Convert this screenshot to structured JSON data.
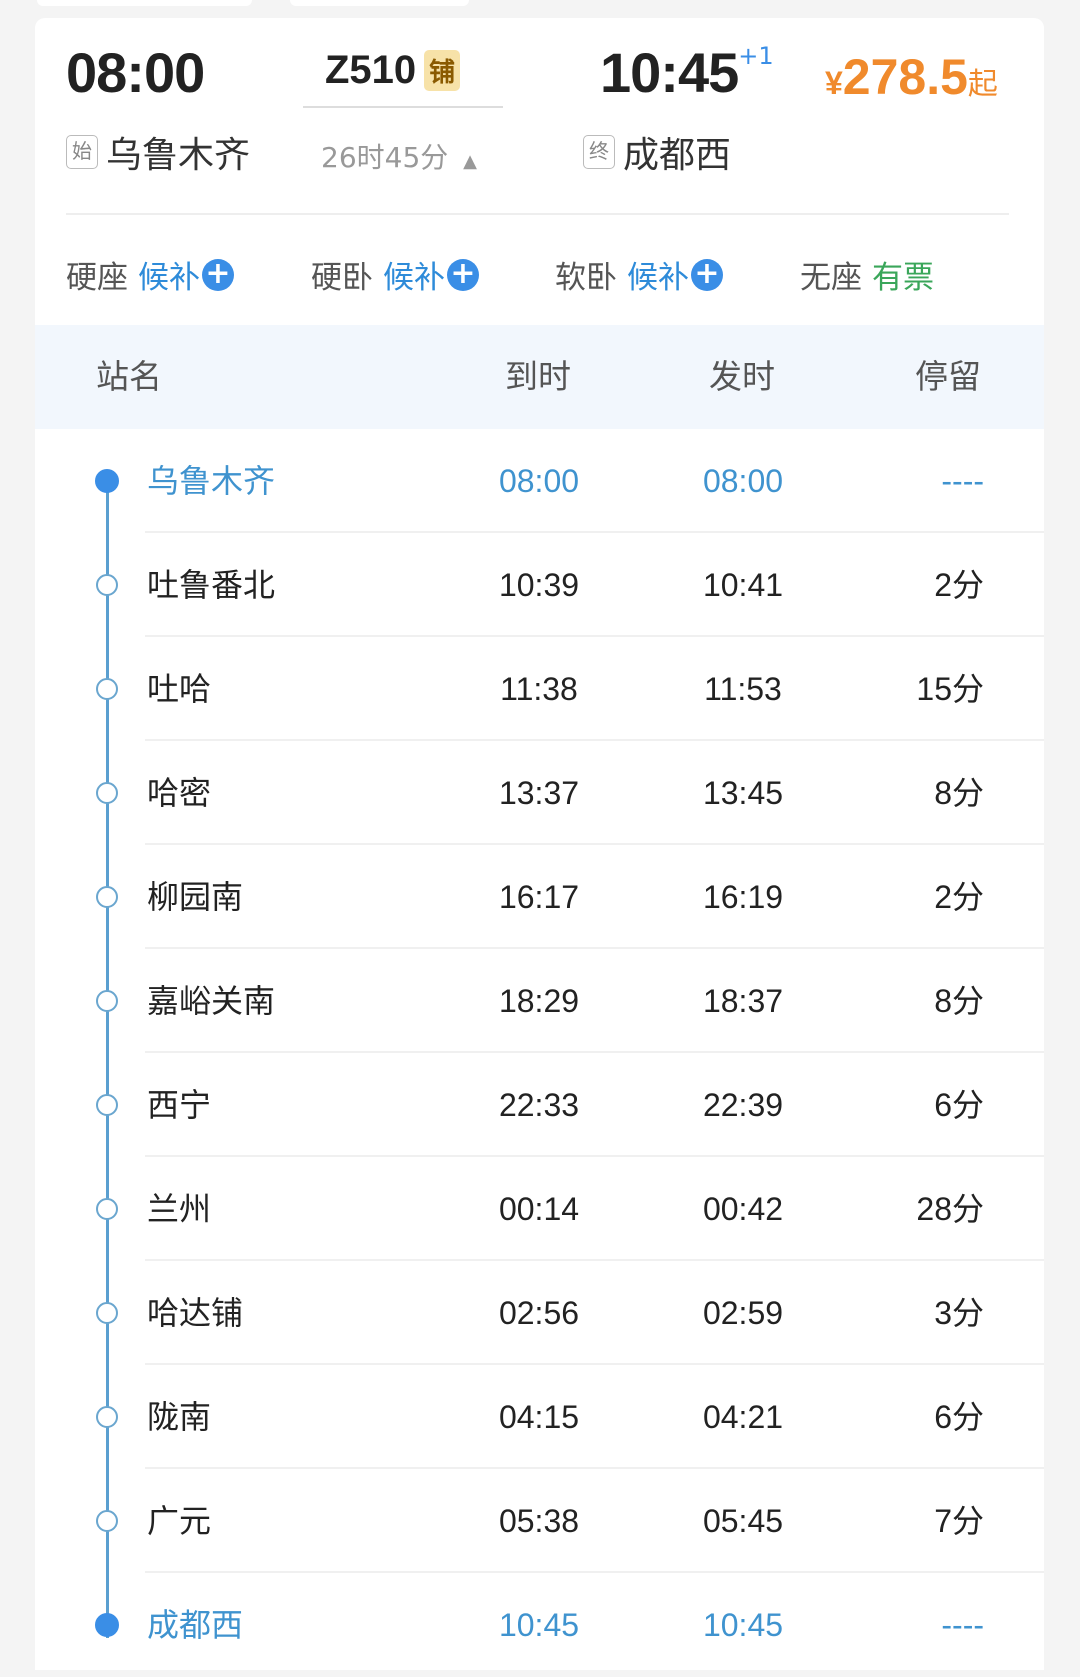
{
  "train": {
    "depart_time": "08:00",
    "number": "Z510",
    "type_badge": "铺",
    "duration": "26时45分",
    "arrive_time": "10:45",
    "day_offset": "+1",
    "price_symbol": "¥",
    "price": "278.5",
    "price_suffix": "起",
    "origin_tag": "始",
    "origin": "乌鲁木齐",
    "dest_tag": "终",
    "destination": "成都西"
  },
  "seats": [
    {
      "type": "硬座",
      "status": "候补",
      "plus": true
    },
    {
      "type": "硬卧",
      "status": "候补",
      "plus": true
    },
    {
      "type": "软卧",
      "status": "候补",
      "plus": true
    },
    {
      "type": "无座",
      "status": "有票",
      "plus": false
    }
  ],
  "table": {
    "headers": {
      "station": "站名",
      "arrive": "到时",
      "depart": "发时",
      "stay": "停留"
    },
    "rows": [
      {
        "station": "乌鲁木齐",
        "arrive": "08:00",
        "depart": "08:00",
        "stay": "----"
      },
      {
        "station": "吐鲁番北",
        "arrive": "10:39",
        "depart": "10:41",
        "stay": "2分"
      },
      {
        "station": "吐哈",
        "arrive": "11:38",
        "depart": "11:53",
        "stay": "15分"
      },
      {
        "station": "哈密",
        "arrive": "13:37",
        "depart": "13:45",
        "stay": "8分"
      },
      {
        "station": "柳园南",
        "arrive": "16:17",
        "depart": "16:19",
        "stay": "2分"
      },
      {
        "station": "嘉峪关南",
        "arrive": "18:29",
        "depart": "18:37",
        "stay": "8分"
      },
      {
        "station": "西宁",
        "arrive": "22:33",
        "depart": "22:39",
        "stay": "6分"
      },
      {
        "station": "兰州",
        "arrive": "00:14",
        "depart": "00:42",
        "stay": "28分"
      },
      {
        "station": "哈达铺",
        "arrive": "02:56",
        "depart": "02:59",
        "stay": "3分"
      },
      {
        "station": "陇南",
        "arrive": "04:15",
        "depart": "04:21",
        "stay": "6分"
      },
      {
        "station": "广元",
        "arrive": "05:38",
        "depart": "05:45",
        "stay": "7分"
      },
      {
        "station": "成都西",
        "arrive": "10:45",
        "depart": "10:45",
        "stay": "----"
      }
    ]
  },
  "colors": {
    "accent": "#3a8ee6",
    "price": "#f08a2c",
    "available": "#3aa65a",
    "badge": "#f7e2a8"
  }
}
